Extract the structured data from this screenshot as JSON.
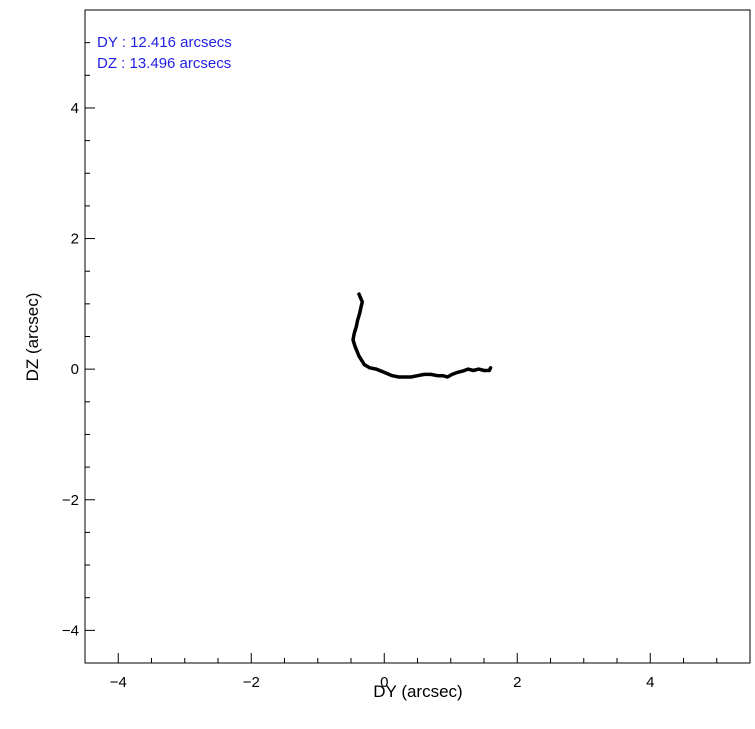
{
  "chart_data": {
    "type": "line",
    "title": "",
    "xlabel": "DY (arcsec)",
    "ylabel": "DZ (arcsec)",
    "xlim": [
      -4.5,
      5.5
    ],
    "ylim": [
      -4.5,
      5.5
    ],
    "xticks": [
      -4,
      -2,
      0,
      2,
      4
    ],
    "yticks": [
      -4,
      -2,
      0,
      2,
      4
    ],
    "xtick_labels": [
      "−4",
      "−2",
      "0",
      "2",
      "4"
    ],
    "ytick_labels": [
      "−4",
      "−2",
      "0",
      "2",
      "4"
    ],
    "minor_tick_step": 0.5,
    "grid": false,
    "legend": "none",
    "annotations": [
      "DY : 12.416 arcsecs",
      "DZ : 13.496 arcsecs"
    ],
    "annotation_color": "#1f1fe6",
    "line_color": "#000000",
    "series": [
      {
        "x": [
          -0.38,
          -0.36,
          -0.33,
          -0.35,
          -0.37,
          -0.4,
          -0.42,
          -0.45,
          -0.47,
          -0.44,
          -0.38,
          -0.3,
          -0.22,
          -0.12,
          0.0,
          0.12,
          0.22,
          0.3,
          0.4,
          0.5,
          0.6,
          0.7,
          0.8,
          0.88,
          0.95,
          1.02,
          1.1,
          1.18,
          1.26,
          1.34,
          1.42,
          1.5,
          1.58,
          1.6
        ],
        "y": [
          1.15,
          1.1,
          1.03,
          0.95,
          0.85,
          0.75,
          0.65,
          0.55,
          0.45,
          0.35,
          0.2,
          0.07,
          0.02,
          0.0,
          -0.05,
          -0.1,
          -0.12,
          -0.12,
          -0.12,
          -0.1,
          -0.08,
          -0.08,
          -0.1,
          -0.1,
          -0.12,
          -0.08,
          -0.05,
          -0.03,
          0.0,
          -0.02,
          0.0,
          -0.02,
          -0.02,
          0.02
        ]
      }
    ]
  }
}
